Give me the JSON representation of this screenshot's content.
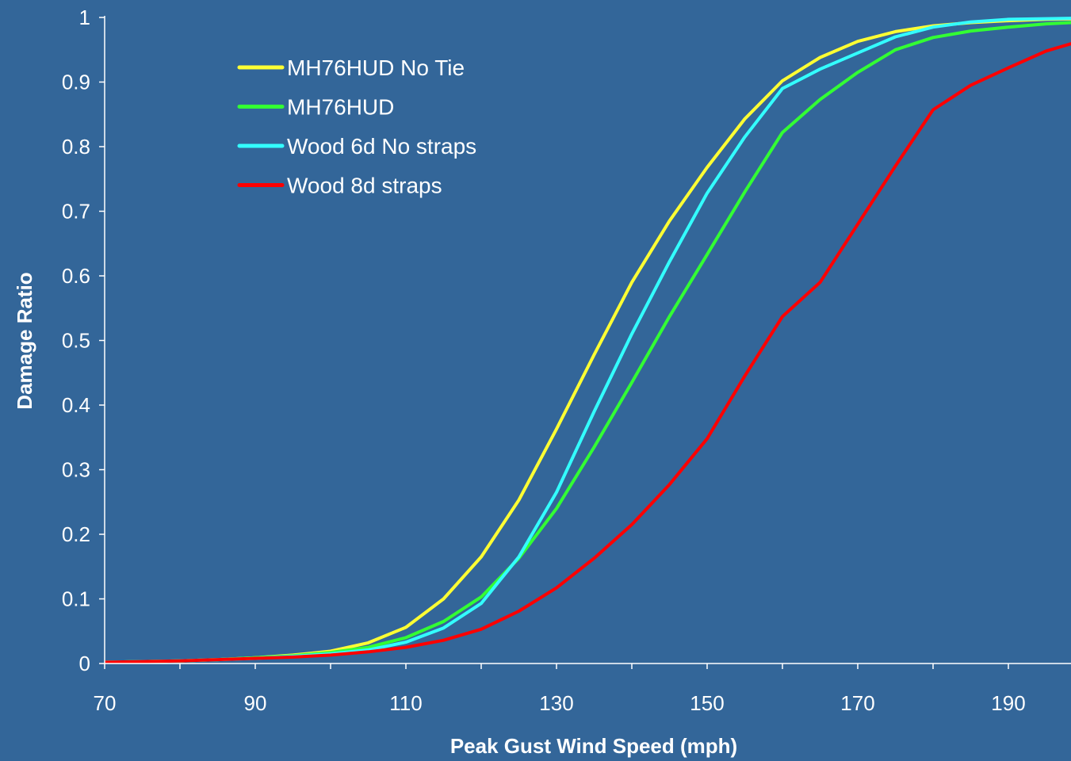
{
  "colors": {
    "background": "#336699",
    "axis": "#ffffff",
    "text": "#ffffff"
  },
  "chart_data": {
    "type": "line",
    "title": "",
    "xlabel": "Peak Gust Wind Speed (mph)",
    "ylabel": "Damage Ratio",
    "xlim": [
      70,
      198
    ],
    "ylim": [
      0,
      1
    ],
    "x_ticks": [
      70,
      90,
      110,
      130,
      150,
      170,
      190
    ],
    "y_ticks": [
      0,
      0.1,
      0.2,
      0.3,
      0.4,
      0.5,
      0.6,
      0.7,
      0.8,
      0.9,
      1
    ],
    "x_tick_labels": [
      "70",
      "90",
      "110",
      "130",
      "150",
      "170",
      "190"
    ],
    "y_tick_labels": [
      "0",
      "0.1",
      "0.2",
      "0.3",
      "0.4",
      "0.5",
      "0.6",
      "0.7",
      "0.8",
      "0.9",
      "1"
    ],
    "grid": false,
    "legend_position": "top-left",
    "x": [
      70,
      75,
      80,
      85,
      90,
      95,
      100,
      105,
      110,
      115,
      120,
      125,
      130,
      135,
      140,
      145,
      150,
      155,
      160,
      165,
      170,
      175,
      180,
      185,
      190,
      195,
      200
    ],
    "series": [
      {
        "name": "MH76HUD No Tie",
        "color": "#ffff33",
        "values": [
          0.002,
          0.003,
          0.004,
          0.006,
          0.009,
          0.013,
          0.019,
          0.032,
          0.056,
          0.1,
          0.165,
          0.253,
          0.363,
          0.478,
          0.59,
          0.685,
          0.768,
          0.843,
          0.902,
          0.938,
          0.963,
          0.978,
          0.987,
          0.992,
          0.995,
          0.997,
          0.998
        ]
      },
      {
        "name": "MH76HUD",
        "color": "#33ff33",
        "values": [
          0.002,
          0.003,
          0.004,
          0.006,
          0.009,
          0.012,
          0.017,
          0.025,
          0.04,
          0.065,
          0.103,
          0.163,
          0.24,
          0.335,
          0.435,
          0.537,
          0.633,
          0.73,
          0.822,
          0.873,
          0.915,
          0.95,
          0.969,
          0.979,
          0.985,
          0.99,
          0.993
        ]
      },
      {
        "name": "Wood 6d No straps",
        "color": "#33ffff",
        "values": [
          0.002,
          0.003,
          0.004,
          0.006,
          0.008,
          0.011,
          0.015,
          0.021,
          0.033,
          0.055,
          0.093,
          0.165,
          0.265,
          0.39,
          0.51,
          0.622,
          0.728,
          0.815,
          0.89,
          0.92,
          0.945,
          0.97,
          0.985,
          0.993,
          0.997,
          0.998,
          0.999
        ]
      },
      {
        "name": "Wood 8d straps",
        "color": "#ff0000",
        "values": [
          0.002,
          0.003,
          0.004,
          0.006,
          0.008,
          0.01,
          0.013,
          0.018,
          0.025,
          0.036,
          0.053,
          0.081,
          0.117,
          0.163,
          0.215,
          0.277,
          0.348,
          0.445,
          0.537,
          0.59,
          0.68,
          0.77,
          0.857,
          0.895,
          0.922,
          0.948,
          0.965
        ]
      }
    ]
  }
}
